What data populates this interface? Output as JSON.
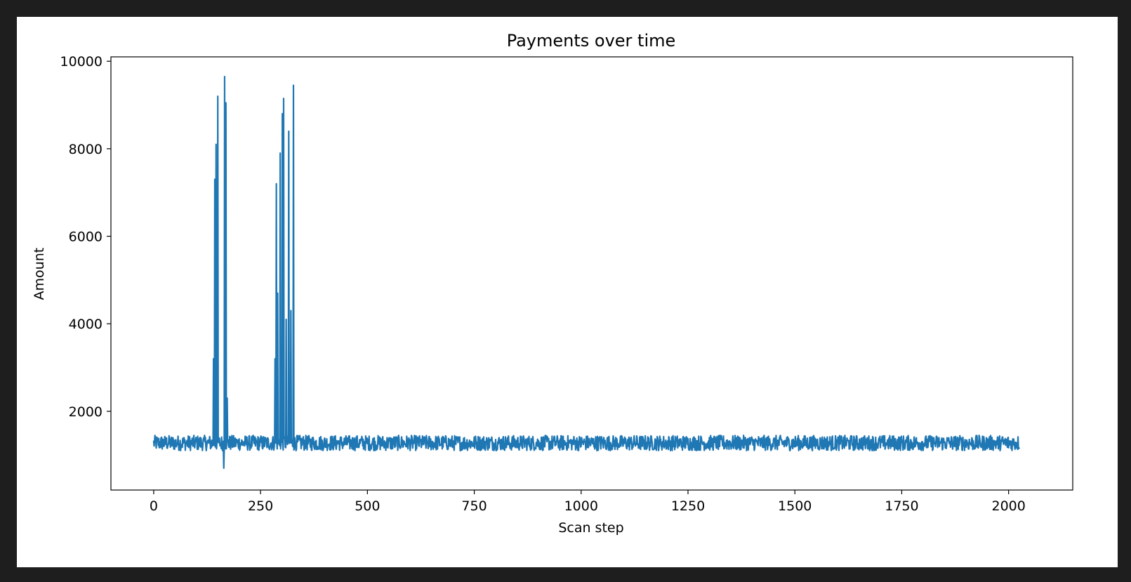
{
  "chart_data": {
    "type": "line",
    "title": "Payments over time",
    "xlabel": "Scan step",
    "ylabel": "Amount",
    "xlim": [
      -100,
      2150
    ],
    "ylim": [
      200,
      10100
    ],
    "xticks": [
      0,
      250,
      500,
      750,
      1000,
      1250,
      1500,
      1750,
      2000
    ],
    "yticks": [
      2000,
      4000,
      6000,
      8000,
      10000
    ],
    "grid": false,
    "line_color": "#1f77b4",
    "series": [
      {
        "baseline_range": [
          1000,
          1500
        ],
        "x_range": [
          0,
          2025
        ],
        "spikes": [
          {
            "x": 140,
            "y": 3200
          },
          {
            "x": 143,
            "y": 7300
          },
          {
            "x": 146,
            "y": 8100
          },
          {
            "x": 150,
            "y": 9200
          },
          {
            "x": 164,
            "y": 700
          },
          {
            "x": 166,
            "y": 9650
          },
          {
            "x": 169,
            "y": 9050
          },
          {
            "x": 172,
            "y": 2300
          },
          {
            "x": 284,
            "y": 3200
          },
          {
            "x": 287,
            "y": 7200
          },
          {
            "x": 290,
            "y": 4700
          },
          {
            "x": 296,
            "y": 7900
          },
          {
            "x": 301,
            "y": 8800
          },
          {
            "x": 304,
            "y": 9150
          },
          {
            "x": 310,
            "y": 4100
          },
          {
            "x": 316,
            "y": 8400
          },
          {
            "x": 321,
            "y": 4300
          },
          {
            "x": 327,
            "y": 9450
          }
        ]
      }
    ]
  }
}
